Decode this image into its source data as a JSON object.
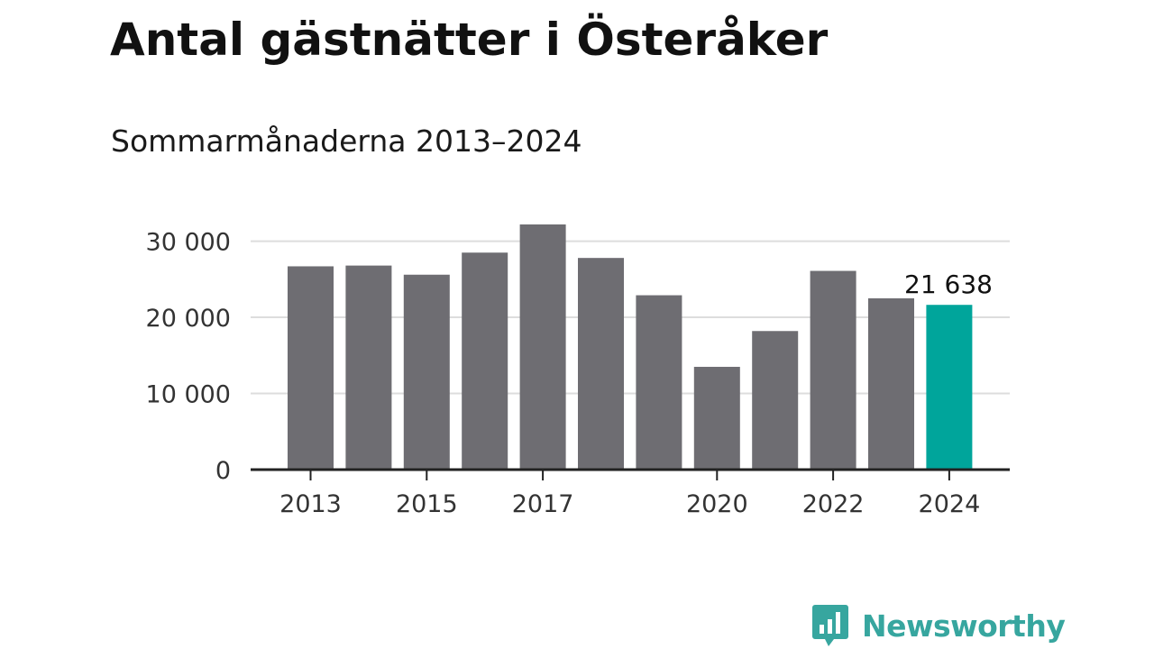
{
  "title": "Antal gästnätter i Österåker",
  "subtitle": "Sommarmånaderna 2013–2024",
  "brand": {
    "name": "Newsworthy",
    "icon": "chat-bubble-bar-chart-icon",
    "color": "#37a69f"
  },
  "colors": {
    "bar": "#6e6d72",
    "highlight": "#00a59b",
    "gridline": "#dddddd",
    "axis": "#222222"
  },
  "chart_data": {
    "type": "bar",
    "categories": [
      "2013",
      "2014",
      "2015",
      "2016",
      "2017",
      "2018",
      "2019",
      "2020",
      "2021",
      "2022",
      "2023",
      "2024"
    ],
    "values": [
      26700,
      26800,
      25600,
      28500,
      32200,
      27800,
      22900,
      13500,
      18200,
      26100,
      22500,
      21638
    ],
    "highlight_category": "2024",
    "xticks": [
      "2013",
      "2015",
      "2017",
      "2020",
      "2022",
      "2024"
    ],
    "yticks": [
      0,
      10000,
      20000,
      30000
    ],
    "ytick_labels": [
      "0",
      "10 000",
      "20 000",
      "30 000"
    ],
    "ylim": [
      0,
      32200
    ],
    "data_labels": [
      {
        "category": "2024",
        "text": "21 638"
      }
    ],
    "xlabel": "",
    "ylabel": "",
    "grid": true,
    "legend": "none"
  }
}
